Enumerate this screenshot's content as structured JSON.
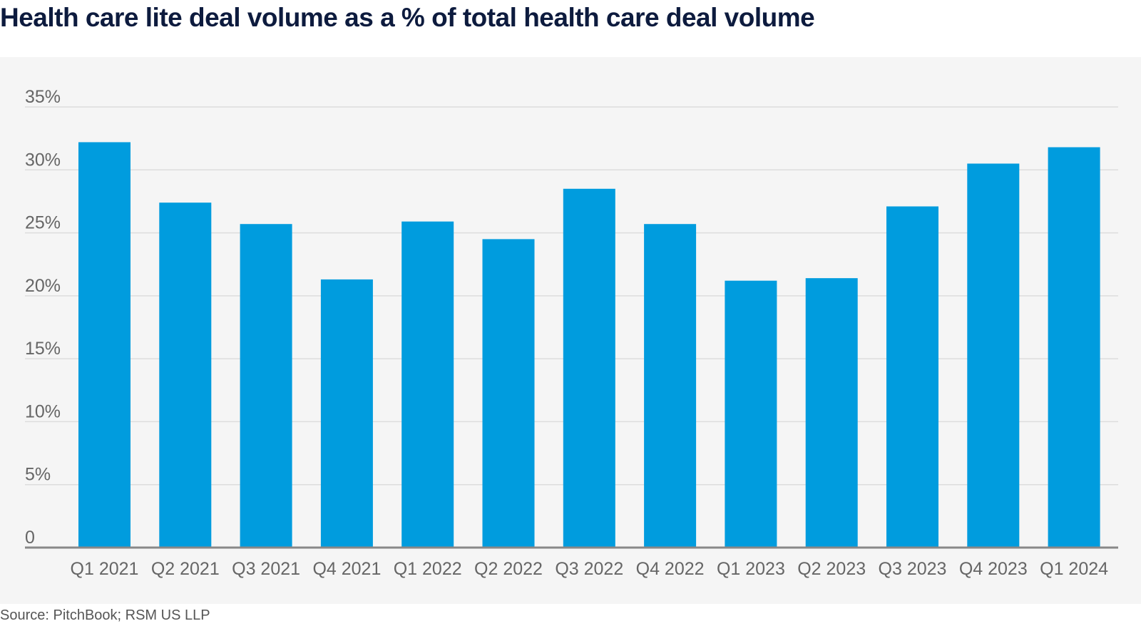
{
  "colors": {
    "bar": "#009cde",
    "plot_background": "#f5f5f5",
    "gridline": "#dddddd",
    "axis": "#888888",
    "title": "#0d1b3e"
  },
  "source": "Source: PitchBook; RSM US LLP",
  "chart_data": {
    "type": "bar",
    "title": "Health care lite deal volume as a % of total health care deal volume",
    "xlabel": "",
    "ylabel": "",
    "ylim": [
      0,
      35
    ],
    "yticks": [
      0,
      5,
      10,
      15,
      20,
      25,
      30,
      35
    ],
    "ytick_labels": [
      "0",
      "5%",
      "10%",
      "15%",
      "20%",
      "25%",
      "30%",
      "35%"
    ],
    "grid": true,
    "legend": "none",
    "categories": [
      "Q1 2021",
      "Q2 2021",
      "Q3 2021",
      "Q4 2021",
      "Q1 2022",
      "Q2 2022",
      "Q3 2022",
      "Q4 2022",
      "Q1 2023",
      "Q2 2023",
      "Q3 2023",
      "Q4 2023",
      "Q1 2024"
    ],
    "series": [
      {
        "name": "Health care lite deal volume %",
        "values": [
          32.2,
          27.4,
          25.7,
          21.3,
          25.9,
          24.5,
          28.5,
          25.7,
          21.2,
          21.4,
          27.1,
          30.5,
          31.8
        ]
      }
    ]
  }
}
